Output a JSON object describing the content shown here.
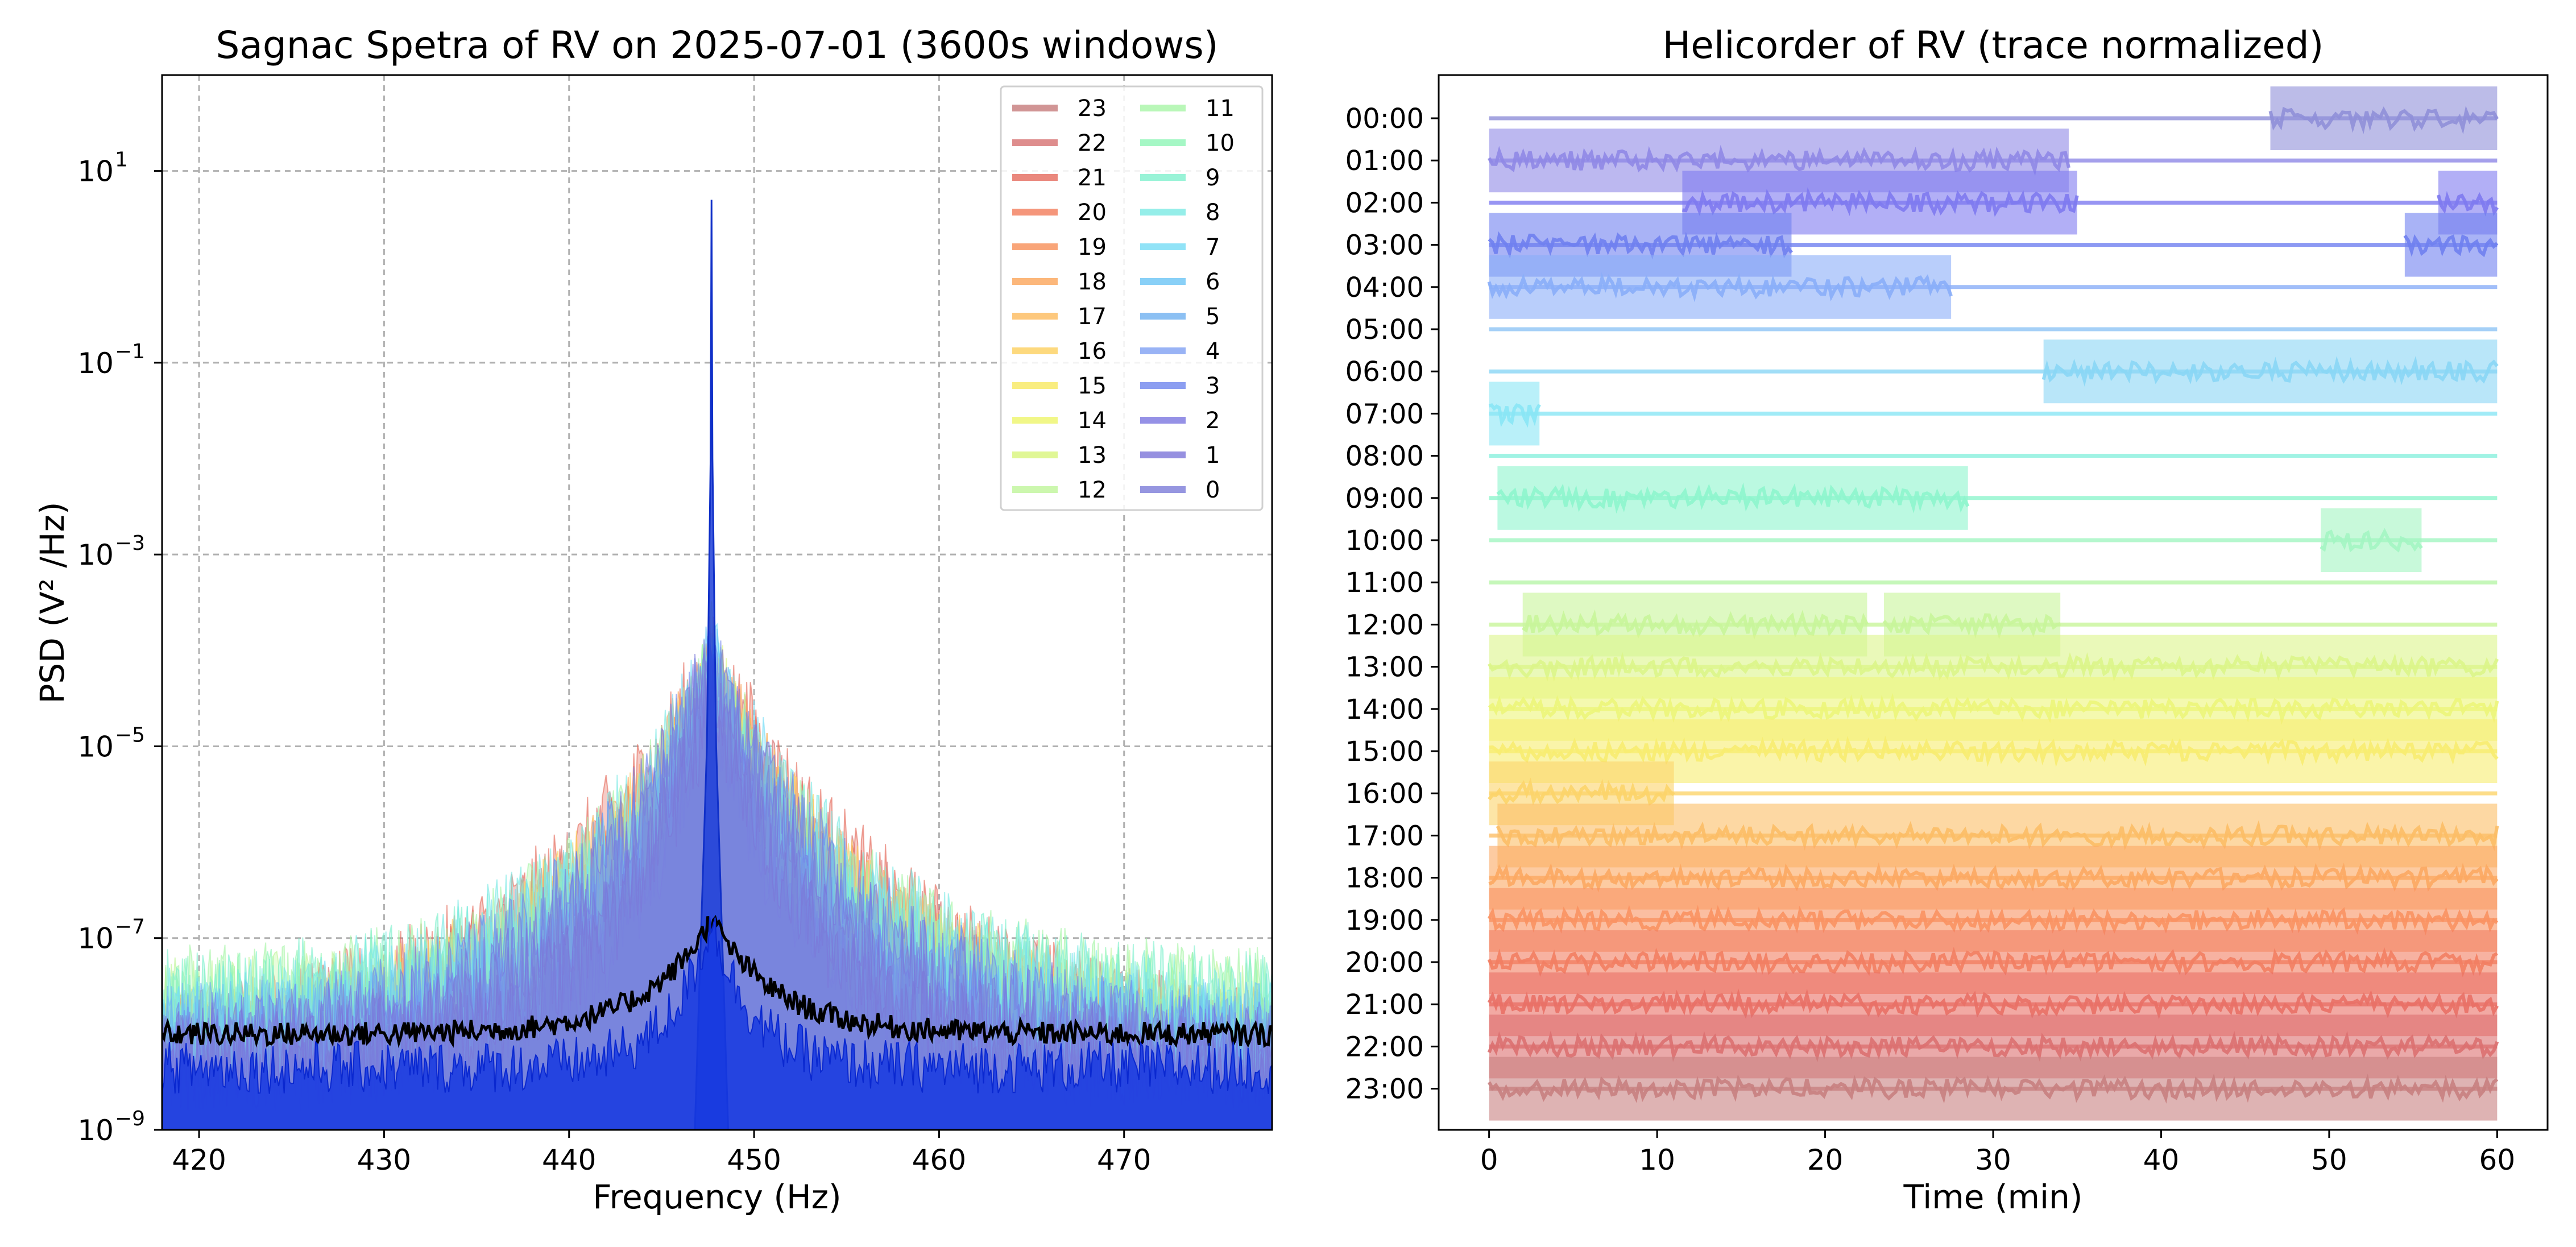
{
  "chart_data": [
    {
      "type": "line",
      "title": "Sagnac Spetra of RV on 2025-07-01 (3600s windows)",
      "xlabel": "Frequency (Hz)",
      "ylabel": "PSD (V² /Hz)",
      "xlim": [
        418,
        478
      ],
      "ylim": [
        1e-09,
        100
      ],
      "yscale": "log",
      "grid": true,
      "xticks": [
        420,
        430,
        440,
        450,
        460,
        470
      ],
      "yticks": [
        {
          "exp": 1,
          "label": "10",
          "sup": "1"
        },
        {
          "exp": -1,
          "label": "10",
          "sup": "−1"
        },
        {
          "exp": -3,
          "label": "10",
          "sup": "−3"
        },
        {
          "exp": -5,
          "label": "10",
          "sup": "−5"
        },
        {
          "exp": -7,
          "label": "10",
          "sup": "−7"
        },
        {
          "exp": -9,
          "label": "10",
          "sup": "−9"
        }
      ],
      "peak_frequency": 447.7,
      "legend": {
        "position": "upper right",
        "columns": 2,
        "entries": [
          "23",
          "22",
          "21",
          "20",
          "19",
          "18",
          "17",
          "16",
          "15",
          "14",
          "13",
          "12",
          "11",
          "10",
          "9",
          "8",
          "7",
          "6",
          "5",
          "4",
          "3",
          "2",
          "1",
          "0"
        ]
      },
      "series": [
        {
          "name": "23",
          "color": "#c57a7a",
          "peak": 0.0001,
          "floor": 5e-09
        },
        {
          "name": "22",
          "color": "#d67070",
          "peak": 0.0001,
          "floor": 5e-09
        },
        {
          "name": "21",
          "color": "#e56a5c",
          "peak": 0.0001,
          "floor": 5e-09
        },
        {
          "name": "20",
          "color": "#f27c5a",
          "peak": 0.0001,
          "floor": 5e-09
        },
        {
          "name": "19",
          "color": "#f78f58",
          "peak": 0.0001,
          "floor": 5e-09
        },
        {
          "name": "18",
          "color": "#fba55a",
          "peak": 0.0001,
          "floor": 5e-09
        },
        {
          "name": "17",
          "color": "#fdba5c",
          "peak": 0.0001,
          "floor": 5e-09
        },
        {
          "name": "16",
          "color": "#fdd05e",
          "peak": 0.0001,
          "floor": 5e-09
        },
        {
          "name": "15",
          "color": "#f7e860",
          "peak": 0.0001,
          "floor": 3e-09
        },
        {
          "name": "14",
          "color": "#eef56a",
          "peak": 0.0001,
          "floor": 3e-09
        },
        {
          "name": "13",
          "color": "#d8f57a",
          "peak": 0.0001,
          "floor": 3e-09
        },
        {
          "name": "12",
          "color": "#bff59a",
          "peak": 0.0001,
          "floor": 2e-08
        },
        {
          "name": "11",
          "color": "#a7f5a6",
          "peak": 0.0001,
          "floor": 2e-08
        },
        {
          "name": "10",
          "color": "#8ff5b6",
          "peak": 0.0001,
          "floor": 2e-08
        },
        {
          "name": "9",
          "color": "#7ff0cd",
          "peak": 0.0001,
          "floor": 2e-08
        },
        {
          "name": "8",
          "color": "#7aeae4",
          "peak": 0.0001,
          "floor": 1e-08
        },
        {
          "name": "7",
          "color": "#75dcf5",
          "peak": 0.0001,
          "floor": 1e-08
        },
        {
          "name": "6",
          "color": "#6cc4f5",
          "peak": 0.0001,
          "floor": 1e-08
        },
        {
          "name": "5",
          "color": "#6fb0f0",
          "peak": 0.0001,
          "floor": 1e-08
        },
        {
          "name": "4",
          "color": "#7fa0f2",
          "peak": 0.0001,
          "floor": 5e-09
        },
        {
          "name": "3",
          "color": "#6f86ee",
          "peak": 0.0001,
          "floor": 5e-09
        },
        {
          "name": "2",
          "color": "#7a76e0",
          "peak": 0.0001,
          "floor": 5e-09
        },
        {
          "name": "1",
          "color": "#7c74d8",
          "peak": 0.0001,
          "floor": 5e-09
        },
        {
          "name": "0",
          "color": "#7c7cd8",
          "peak": 0.0001,
          "floor": 5e-09
        }
      ]
    },
    {
      "type": "line",
      "title": "Helicorder of RV (trace normalized)",
      "xlabel": "Time (min)",
      "ylabel": "",
      "xlim": [
        -3,
        63
      ],
      "xticks": [
        0,
        10,
        20,
        30,
        40,
        50,
        60
      ],
      "grid": false,
      "rows": [
        {
          "label": "00:00",
          "color": "#8f8fd8",
          "bursts": [
            [
              46.5,
              60
            ]
          ]
        },
        {
          "label": "01:00",
          "color": "#8f88e6",
          "bursts": [
            [
              0,
              34.5
            ]
          ]
        },
        {
          "label": "02:00",
          "color": "#7e7af0",
          "bursts": [
            [
              11.5,
              35
            ],
            [
              56.5,
              60
            ]
          ]
        },
        {
          "label": "03:00",
          "color": "#6f80f0",
          "bursts": [
            [
              0,
              18
            ],
            [
              54.5,
              60
            ]
          ]
        },
        {
          "label": "04:00",
          "color": "#8aaef8",
          "bursts": [
            [
              0,
              27.5
            ]
          ]
        },
        {
          "label": "05:00",
          "color": "#8ec4f5",
          "bursts": []
        },
        {
          "label": "06:00",
          "color": "#8ad6f5",
          "bursts": [
            [
              33,
              60
            ]
          ]
        },
        {
          "label": "07:00",
          "color": "#8ae6f5",
          "bursts": [
            [
              0,
              3
            ]
          ]
        },
        {
          "label": "08:00",
          "color": "#88f0dd",
          "bursts": []
        },
        {
          "label": "09:00",
          "color": "#8ef5cd",
          "bursts": [
            [
              0.5,
              28.5
            ]
          ]
        },
        {
          "label": "10:00",
          "color": "#a3f5c2",
          "bursts": [
            [
              49.5,
              55.5
            ]
          ]
        },
        {
          "label": "11:00",
          "color": "#b6f5a8",
          "bursts": []
        },
        {
          "label": "12:00",
          "color": "#c8f59a",
          "bursts": [
            [
              2,
              22.5
            ],
            [
              23.5,
              34
            ]
          ]
        },
        {
          "label": "13:00",
          "color": "#dcf58a",
          "bursts": [
            [
              0,
              60
            ]
          ]
        },
        {
          "label": "14:00",
          "color": "#ecf57a",
          "bursts": [
            [
              0,
              60
            ]
          ]
        },
        {
          "label": "15:00",
          "color": "#f7ec70",
          "bursts": [
            [
              0,
              60
            ]
          ]
        },
        {
          "label": "16:00",
          "color": "#fcd46a",
          "bursts": [
            [
              0,
              11
            ]
          ]
        },
        {
          "label": "17:00",
          "color": "#fcbe66",
          "bursts": [
            [
              0.5,
              60
            ]
          ]
        },
        {
          "label": "18:00",
          "color": "#fca862",
          "bursts": [
            [
              0,
              60
            ]
          ]
        },
        {
          "label": "19:00",
          "color": "#f99262",
          "bursts": [
            [
              0,
              60
            ]
          ]
        },
        {
          "label": "20:00",
          "color": "#f27e62",
          "bursts": [
            [
              0,
              60
            ]
          ]
        },
        {
          "label": "21:00",
          "color": "#e97066",
          "bursts": [
            [
              0,
              60
            ]
          ]
        },
        {
          "label": "22:00",
          "color": "#dc7070",
          "bursts": [
            [
              0,
              60
            ]
          ]
        },
        {
          "label": "23:00",
          "color": "#c88080",
          "bursts": [
            [
              0,
              60
            ]
          ]
        }
      ]
    }
  ]
}
